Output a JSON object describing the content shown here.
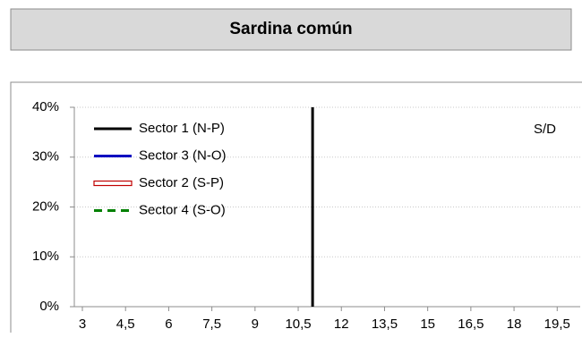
{
  "chart_data": {
    "type": "line",
    "title": "Sardina común",
    "annotation": "S/D",
    "series": [
      {
        "name": "Sector 1 (N-P)",
        "color": "#000000",
        "style": "solid"
      },
      {
        "name": "Sector 3 (N-O)",
        "color": "#0000c0",
        "style": "solid"
      },
      {
        "name": "Sector 2 (S-P)",
        "color": "#c00000",
        "style": "double"
      },
      {
        "name": "Sector 4 (S-O)",
        "color": "#008000",
        "style": "dashed"
      }
    ],
    "reference_line": {
      "x": 11,
      "color": "#000000"
    },
    "xlim": [
      2.72,
      20.3
    ],
    "xticks": [
      3,
      {
        "value": 4.5,
        "label": "4,5"
      },
      6,
      {
        "value": 7.5,
        "label": "7,5"
      },
      9,
      {
        "value": 10.5,
        "label": "10,5"
      },
      12,
      {
        "value": 13.5,
        "label": "13,5"
      },
      15,
      {
        "value": 16.5,
        "label": "16,5"
      },
      18,
      {
        "value": 19.5,
        "label": "19,5"
      }
    ],
    "ylim": [
      0,
      40
    ],
    "yticks": [
      {
        "value": 0,
        "label": "0%"
      },
      {
        "value": 10,
        "label": "10%"
      },
      {
        "value": 20,
        "label": "20%"
      },
      {
        "value": 30,
        "label": "30%"
      },
      {
        "value": 40,
        "label": "40%"
      }
    ],
    "grid": true,
    "legend": "top-left"
  }
}
